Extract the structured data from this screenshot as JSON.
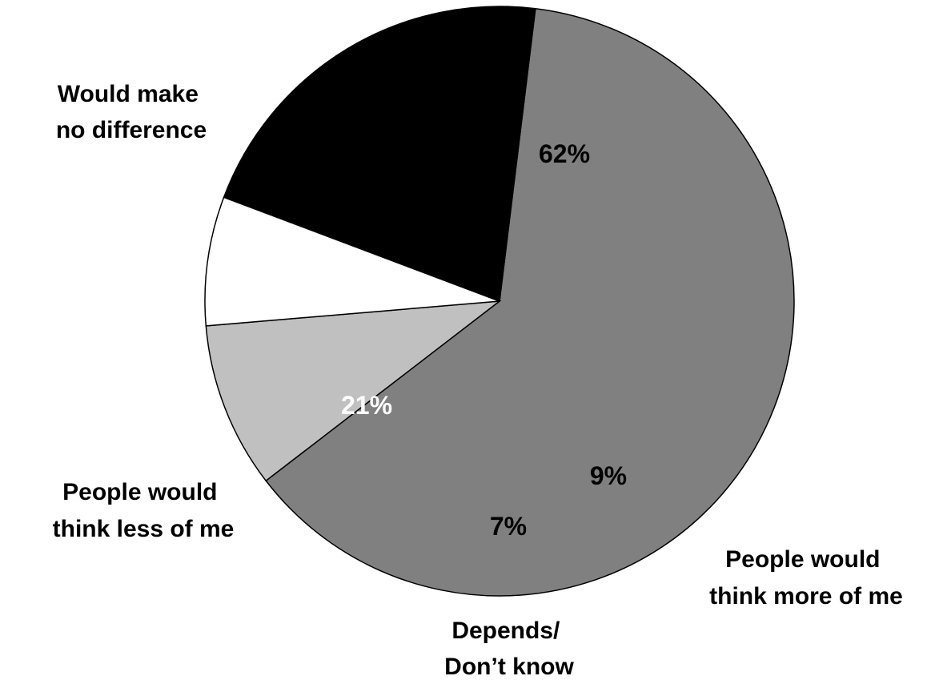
{
  "chart_data": {
    "type": "pie",
    "slices": [
      {
        "label_lines": [
          "Would make",
          "no difference"
        ],
        "value": 62,
        "value_label": "62%",
        "color": "#808080",
        "value_label_color": "#000000"
      },
      {
        "label_lines": [
          "People would",
          "think more of me"
        ],
        "value": 9,
        "value_label": "9%",
        "color": "#c0c0c0",
        "value_label_color": "#000000"
      },
      {
        "label_lines": [
          "Depends/",
          "Don’t know"
        ],
        "value": 7,
        "value_label": "7%",
        "color": "#ffffff",
        "value_label_color": "#000000"
      },
      {
        "label_lines": [
          "People would",
          "think less of me"
        ],
        "value": 21,
        "value_label": "21%",
        "color": "#000000",
        "value_label_color": "#ffffff"
      }
    ]
  }
}
